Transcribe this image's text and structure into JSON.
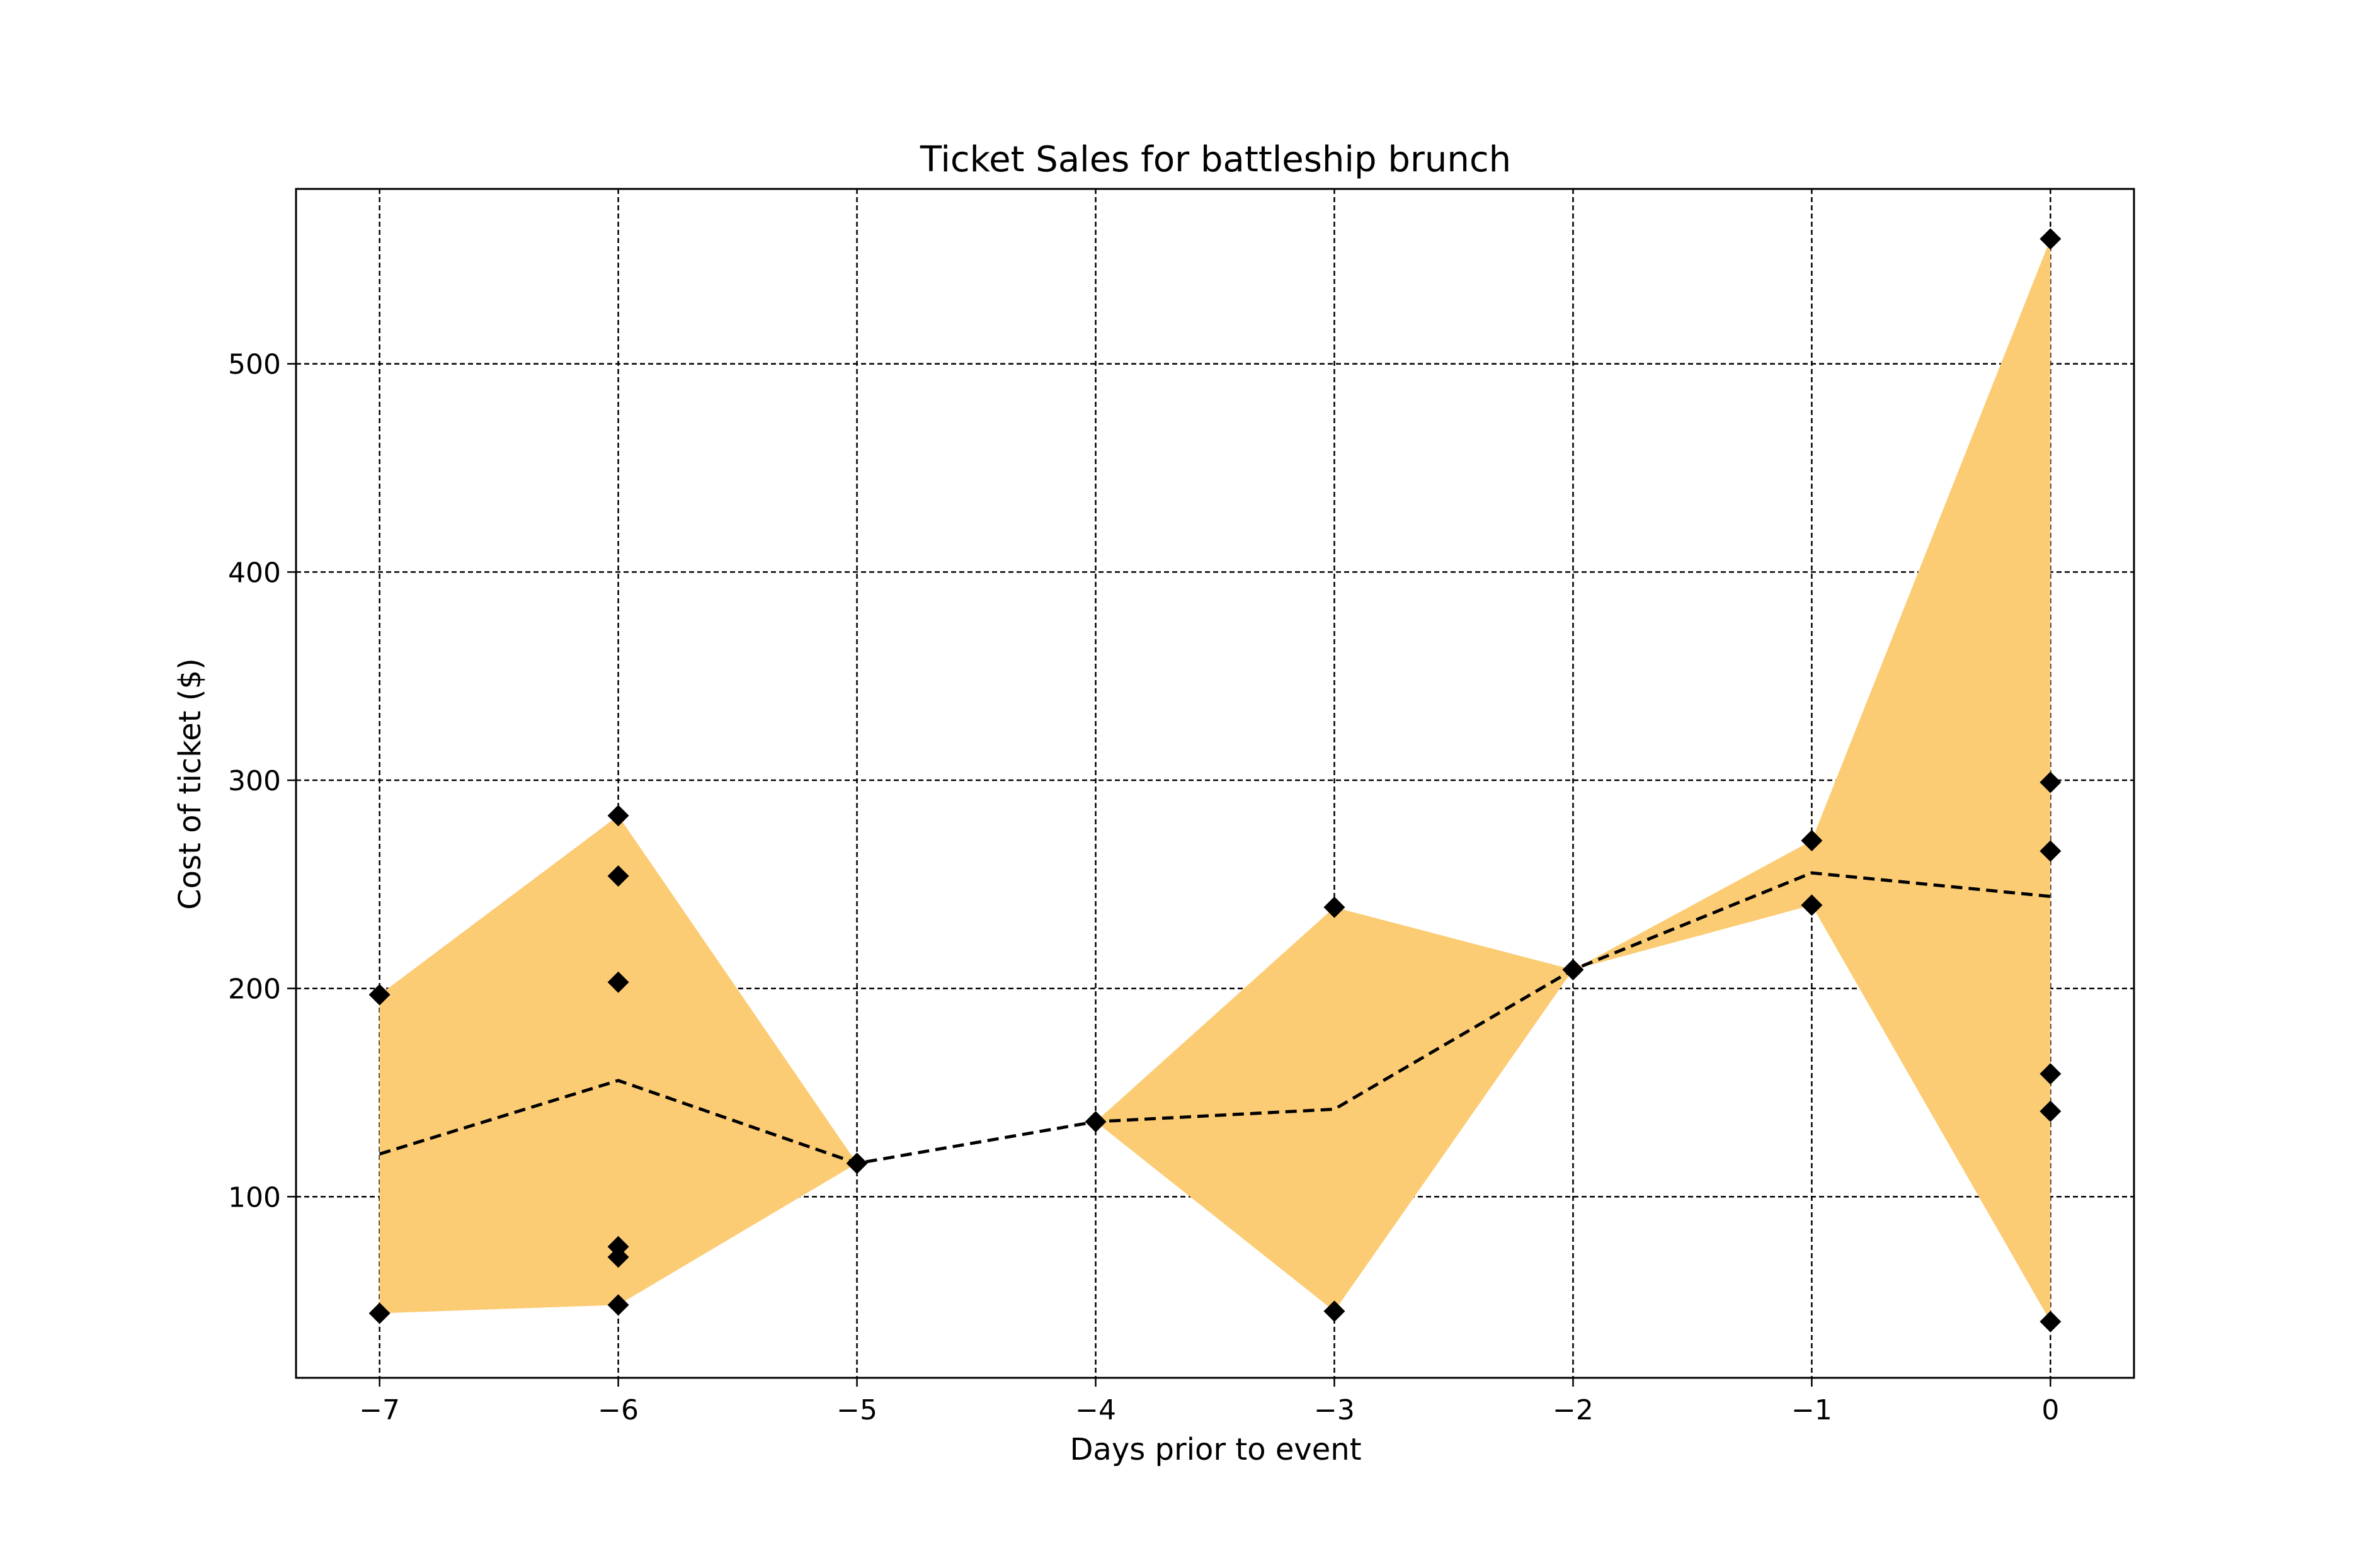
{
  "chart_data": {
    "type": "scatter",
    "title": "Ticket Sales for battleship brunch",
    "xlabel": "Days prior to event",
    "ylabel": "Cost of ticket ($)",
    "xlim": [
      -7.35,
      0.35
    ],
    "ylim": [
      13,
      584
    ],
    "xticks": [
      -7,
      -6,
      -5,
      -4,
      -3,
      -2,
      -1,
      0
    ],
    "xtick_labels": [
      "−7",
      "−6",
      "−5",
      "−4",
      "−3",
      "−2",
      "−1",
      "0"
    ],
    "yticks": [
      100,
      200,
      300,
      400,
      500
    ],
    "ytick_labels": [
      "100",
      "200",
      "300",
      "400",
      "500"
    ],
    "grid": true,
    "colors": {
      "band": "#fccc74",
      "mean_line": "#000000",
      "markers": "#000000"
    },
    "points": [
      {
        "x": -7,
        "y": 197
      },
      {
        "x": -7,
        "y": 44
      },
      {
        "x": -6,
        "y": 283
      },
      {
        "x": -6,
        "y": 254
      },
      {
        "x": -6,
        "y": 203
      },
      {
        "x": -6,
        "y": 76
      },
      {
        "x": -6,
        "y": 71
      },
      {
        "x": -6,
        "y": 48
      },
      {
        "x": -5,
        "y": 116
      },
      {
        "x": -4,
        "y": 136
      },
      {
        "x": -3,
        "y": 239
      },
      {
        "x": -3,
        "y": 45
      },
      {
        "x": -2,
        "y": 209
      },
      {
        "x": -1,
        "y": 271
      },
      {
        "x": -1,
        "y": 240
      },
      {
        "x": 0,
        "y": 560
      },
      {
        "x": 0,
        "y": 299
      },
      {
        "x": 0,
        "y": 266
      },
      {
        "x": 0,
        "y": 159
      },
      {
        "x": 0,
        "y": 141
      },
      {
        "x": 0,
        "y": 40
      }
    ],
    "mean": {
      "x": [
        -7,
        -6,
        -5,
        -4,
        -3,
        -2,
        -1,
        0
      ],
      "y": [
        120.5,
        155.8,
        116,
        136,
        142,
        209,
        255.5,
        244.2
      ]
    },
    "band": {
      "x": [
        -7,
        -6,
        -5,
        -4,
        -3,
        -2,
        -1,
        0
      ],
      "min": [
        44,
        48,
        116,
        136,
        45,
        209,
        240,
        40
      ],
      "max": [
        197,
        283,
        116,
        136,
        239,
        209,
        271,
        560
      ]
    }
  }
}
